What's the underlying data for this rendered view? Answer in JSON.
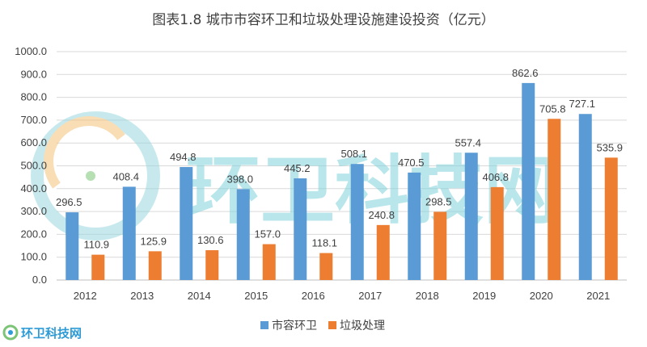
{
  "chart_data": {
    "type": "bar",
    "title": "图表1.8 城市市容环卫和垃圾处理设施建设投资（亿元）",
    "categories": [
      "2012",
      "2013",
      "2014",
      "2015",
      "2016",
      "2017",
      "2018",
      "2019",
      "2020",
      "2021"
    ],
    "series": [
      {
        "name": "市容环卫",
        "color": "#5b9bd5",
        "values": [
          296.5,
          408.4,
          494.8,
          398.0,
          445.2,
          508.1,
          470.5,
          557.4,
          862.6,
          727.1
        ]
      },
      {
        "name": "垃圾处理",
        "color": "#ed7d31",
        "values": [
          110.9,
          125.9,
          130.6,
          157.0,
          118.1,
          240.8,
          298.5,
          406.8,
          705.8,
          535.9
        ]
      }
    ],
    "ylim": [
      0,
      1000
    ],
    "yticks": [
      0,
      100,
      200,
      300,
      400,
      500,
      600,
      700,
      800,
      900,
      1000
    ],
    "ytick_decimals": 1,
    "grid": true,
    "legend": "bottom-center",
    "xlabel": "",
    "ylabel": ""
  },
  "watermark": {
    "text": "环卫科技网",
    "logo_text": "环卫科技网"
  }
}
